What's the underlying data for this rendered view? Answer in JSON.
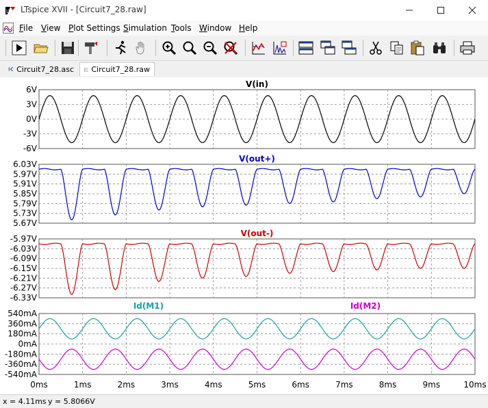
{
  "window": {
    "title": "LTspice XVII - [Circuit7_28.raw]"
  },
  "menu": [
    {
      "label": "File",
      "u": "F",
      "rest": "ile"
    },
    {
      "label": "View",
      "u": "V",
      "rest": "iew"
    },
    {
      "label": "Plot Settings",
      "u": "P",
      "rest": "lot Settings"
    },
    {
      "label": "Simulation",
      "u": "S",
      "rest": "imulation"
    },
    {
      "label": "Tools",
      "u": "T",
      "rest": "ools"
    },
    {
      "label": "Window",
      "u": "W",
      "rest": "indow"
    },
    {
      "label": "Help",
      "u": "H",
      "rest": "elp"
    }
  ],
  "toolbar": [
    {
      "name": "run-icon",
      "group": 0
    },
    {
      "name": "open-folder-icon",
      "group": 0
    },
    {
      "name": "save-icon",
      "group": 1
    },
    {
      "name": "control-panel-hammer-icon",
      "group": 2
    },
    {
      "name": "halt-running-man-icon",
      "group": 3
    },
    {
      "name": "pan-hand-icon",
      "group": 3
    },
    {
      "name": "zoom-in-icon",
      "group": 4
    },
    {
      "name": "zoom-full-icon",
      "group": 4
    },
    {
      "name": "zoom-out-icon",
      "group": 4
    },
    {
      "name": "zoom-cancel-icon",
      "group": 4
    },
    {
      "name": "autorange-icon",
      "group": 5
    },
    {
      "name": "fft-icon",
      "group": 5
    },
    {
      "name": "tile-horizontal-icon",
      "group": 6
    },
    {
      "name": "cascade-icon",
      "group": 6
    },
    {
      "name": "tile-vertical-icon",
      "group": 6
    },
    {
      "name": "cut-icon",
      "group": 7
    },
    {
      "name": "copy-icon",
      "group": 7
    },
    {
      "name": "paste-icon",
      "group": 7
    },
    {
      "name": "find-binoculars-icon",
      "group": 7
    },
    {
      "name": "print-icon",
      "group": 8
    }
  ],
  "tabs": [
    {
      "label": "Circuit7_28.asc",
      "icon": "schematic-icon",
      "active": false
    },
    {
      "label": "Circuit7_28.raw",
      "icon": "waveform-icon",
      "active": true
    }
  ],
  "status": {
    "x": "x = 4.11ms",
    "y": "y = 5.8066V"
  },
  "colors": {
    "vin": "#000000",
    "voutp": "#0000cc",
    "voutm": "#cc0000",
    "idm1": "#17a2a2",
    "idm2": "#cc00cc",
    "grid": "#888888"
  },
  "chart_data": [
    {
      "type": "line",
      "title": "V(in)",
      "yticks": [
        "6V",
        "3V",
        "0V",
        "-3V",
        "-6V"
      ],
      "ylim": [
        -6,
        6
      ],
      "xlim": [
        0,
        10
      ],
      "xunit": "ms",
      "series": [
        {
          "name": "V(in)",
          "shape": "sine",
          "amplitude": 4.8,
          "offset": 0,
          "period_ms": 1.0,
          "phase_deg": 0
        }
      ]
    },
    {
      "type": "line",
      "title": "V(out+)",
      "yticks": [
        "6.03V",
        "5.97V",
        "5.91V",
        "5.85V",
        "5.79V",
        "5.73V",
        "5.67V"
      ],
      "ylim": [
        5.67,
        6.03
      ],
      "xlim": [
        0,
        10
      ],
      "series": [
        {
          "name": "V(out+)",
          "high": 6.0,
          "dips": [
            5.69,
            5.72,
            5.75,
            5.77,
            5.78,
            5.79,
            5.8,
            5.82,
            5.83,
            5.85
          ]
        }
      ]
    },
    {
      "type": "line",
      "title": "V(out-)",
      "yticks": [
        "-5.97V",
        "-6.03V",
        "-6.09V",
        "-6.15V",
        "-6.21V",
        "-6.27V",
        "-6.33V"
      ],
      "ylim": [
        -6.33,
        -5.97
      ],
      "xlim": [
        0,
        10
      ],
      "series": [
        {
          "name": "V(out-)",
          "high": -6.0,
          "dips": [
            -6.31,
            -6.28,
            -6.23,
            -6.21,
            -6.2,
            -6.18,
            -6.17,
            -6.16,
            -6.15,
            -6.15
          ]
        }
      ]
    },
    {
      "type": "line",
      "title": "Id(M1)",
      "title2": "Id(M2)",
      "yticks": [
        "540mA",
        "360mA",
        "180mA",
        "0mA",
        "-180mA",
        "-360mA",
        "-540mA"
      ],
      "ylim": [
        -540,
        540
      ],
      "xlim": [
        0,
        10
      ],
      "xticks": [
        "0ms",
        "1ms",
        "2ms",
        "3ms",
        "4ms",
        "5ms",
        "6ms",
        "7ms",
        "8ms",
        "9ms",
        "10ms"
      ],
      "series": [
        {
          "name": "Id(M1)",
          "shape": "sine",
          "amplitude": 180,
          "offset": 270,
          "period_ms": 1.0
        },
        {
          "name": "Id(M2)",
          "shape": "sine",
          "amplitude": 180,
          "offset": -270,
          "period_ms": 1.0
        }
      ]
    }
  ]
}
